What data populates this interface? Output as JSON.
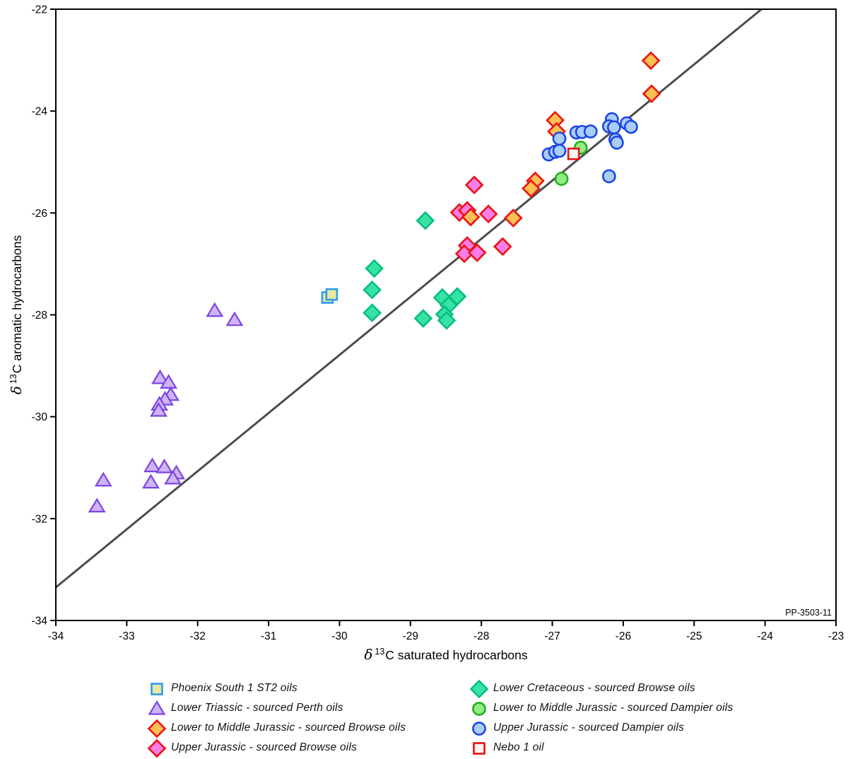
{
  "chart_data": {
    "type": "scatter",
    "title": "",
    "xlabel_parts": {
      "delta": "δ",
      "sup": "13",
      "rest": "C saturated hydrocarbons"
    },
    "ylabel_parts": {
      "delta": "δ",
      "sup": "13",
      "rest": "C aromatic hydrocarbons"
    },
    "xlim": [
      -34,
      -23
    ],
    "ylim": [
      -34,
      -22
    ],
    "x_ticks": [
      -34,
      -33,
      -32,
      -31,
      -30,
      -29,
      -28,
      -27,
      -26,
      -25,
      -24,
      -23
    ],
    "y_ticks": [
      -22,
      -24,
      -26,
      -28,
      -30,
      -32,
      -34
    ],
    "grid": false,
    "figure_number": "PP-3503-11",
    "trendline": {
      "x1": -34,
      "y1": -33.35,
      "x2": -24.05,
      "y2": -22,
      "color": "#4d4d4d",
      "width": 3
    },
    "axis_color": "#000000",
    "series": [
      {
        "id": "phoenix",
        "label": "Phoenix South 1 ST2 oils",
        "marker": "square",
        "fill": "#ece79e",
        "stroke": "#2a9df0",
        "points": [
          [
            -30.17,
            -27.66
          ],
          [
            -30.11,
            -27.6
          ]
        ]
      },
      {
        "id": "perth",
        "label": "Lower Triassic - sourced Perth oils",
        "marker": "triangle",
        "fill": "#cdb4f4",
        "stroke": "#7c45e0",
        "points": [
          [
            -31.76,
            -27.92
          ],
          [
            -31.48,
            -28.1
          ],
          [
            -32.53,
            -29.24
          ],
          [
            -32.41,
            -29.33
          ],
          [
            -32.38,
            -29.57
          ],
          [
            -32.46,
            -29.66
          ],
          [
            -32.54,
            -29.76
          ],
          [
            -32.55,
            -29.88
          ],
          [
            -32.64,
            -30.97
          ],
          [
            -32.47,
            -30.99
          ],
          [
            -32.3,
            -31.11
          ],
          [
            -32.35,
            -31.21
          ],
          [
            -32.66,
            -31.29
          ],
          [
            -33.33,
            -31.25
          ],
          [
            -33.42,
            -31.76
          ]
        ]
      },
      {
        "id": "browse_lmj",
        "label": "Lower to Middle Jurassic - sourced Browse oils",
        "marker": "diamond",
        "fill": "#fcbf55",
        "stroke": "#ee1111",
        "points": [
          [
            -28.15,
            -26.08
          ],
          [
            -27.55,
            -26.1
          ],
          [
            -27.24,
            -25.37
          ],
          [
            -27.3,
            -25.52
          ],
          [
            -26.96,
            -24.18
          ],
          [
            -26.94,
            -24.4
          ],
          [
            -25.61,
            -23.01
          ],
          [
            -25.6,
            -23.66
          ]
        ]
      },
      {
        "id": "browse_uj",
        "label": "Upper Jurassic - sourced Browse oils",
        "marker": "diamond",
        "fill": "#fa7de8",
        "stroke": "#ee1111",
        "points": [
          [
            -28.1,
            -25.45
          ],
          [
            -28.31,
            -25.99
          ],
          [
            -28.2,
            -25.95
          ],
          [
            -27.9,
            -26.02
          ],
          [
            -28.2,
            -26.64
          ],
          [
            -28.24,
            -26.8
          ],
          [
            -28.06,
            -26.78
          ],
          [
            -27.7,
            -26.66
          ]
        ]
      },
      {
        "id": "browse_lk",
        "label": "Lower Cretaceous - sourced Browse oils",
        "marker": "diamond",
        "fill": "#36e2a4",
        "stroke": "#07be7e",
        "points": [
          [
            -28.79,
            -26.15
          ],
          [
            -29.51,
            -27.09
          ],
          [
            -29.54,
            -27.51
          ],
          [
            -29.54,
            -27.96
          ],
          [
            -28.82,
            -28.07
          ],
          [
            -28.55,
            -27.66
          ],
          [
            -28.34,
            -27.64
          ],
          [
            -28.46,
            -27.81
          ],
          [
            -28.52,
            -27.99
          ],
          [
            -28.49,
            -28.11
          ]
        ]
      },
      {
        "id": "dampier_lmj",
        "label": "Lower to Middle Jurassic - sourced Dampier oils",
        "marker": "circle",
        "fill": "#94ea84",
        "stroke": "#22b022",
        "points": [
          [
            -26.6,
            -24.72
          ],
          [
            -26.87,
            -25.33
          ]
        ]
      },
      {
        "id": "dampier_uj",
        "label": "Upper Jurassic - sourced Dampier oils",
        "marker": "circle",
        "fill": "#a9cef6",
        "stroke": "#1e45e6",
        "points": [
          [
            -27.05,
            -24.85
          ],
          [
            -26.96,
            -24.8
          ],
          [
            -26.9,
            -24.78
          ],
          [
            -26.9,
            -24.54
          ],
          [
            -26.66,
            -24.42
          ],
          [
            -26.58,
            -24.41
          ],
          [
            -26.46,
            -24.4
          ],
          [
            -26.16,
            -24.16
          ],
          [
            -26.2,
            -24.3
          ],
          [
            -26.13,
            -24.32
          ],
          [
            -26.11,
            -24.56
          ],
          [
            -26.09,
            -24.62
          ],
          [
            -25.95,
            -24.24
          ],
          [
            -25.89,
            -24.31
          ],
          [
            -26.2,
            -25.28
          ]
        ]
      },
      {
        "id": "nebo",
        "label": "Nebo 1 oil",
        "marker": "square",
        "fill": "#f4f4f4",
        "stroke": "#ee1111",
        "points": [
          [
            -26.7,
            -24.84
          ]
        ]
      }
    ],
    "draw_order": [
      "phoenix",
      "perth",
      "browse_uj",
      "browse_lmj",
      "browse_lk",
      "dampier_uj",
      "dampier_lmj",
      "nebo"
    ],
    "legend": {
      "left_column": [
        0,
        1,
        2,
        3
      ],
      "right_column": [
        4,
        5,
        6,
        7
      ]
    }
  }
}
